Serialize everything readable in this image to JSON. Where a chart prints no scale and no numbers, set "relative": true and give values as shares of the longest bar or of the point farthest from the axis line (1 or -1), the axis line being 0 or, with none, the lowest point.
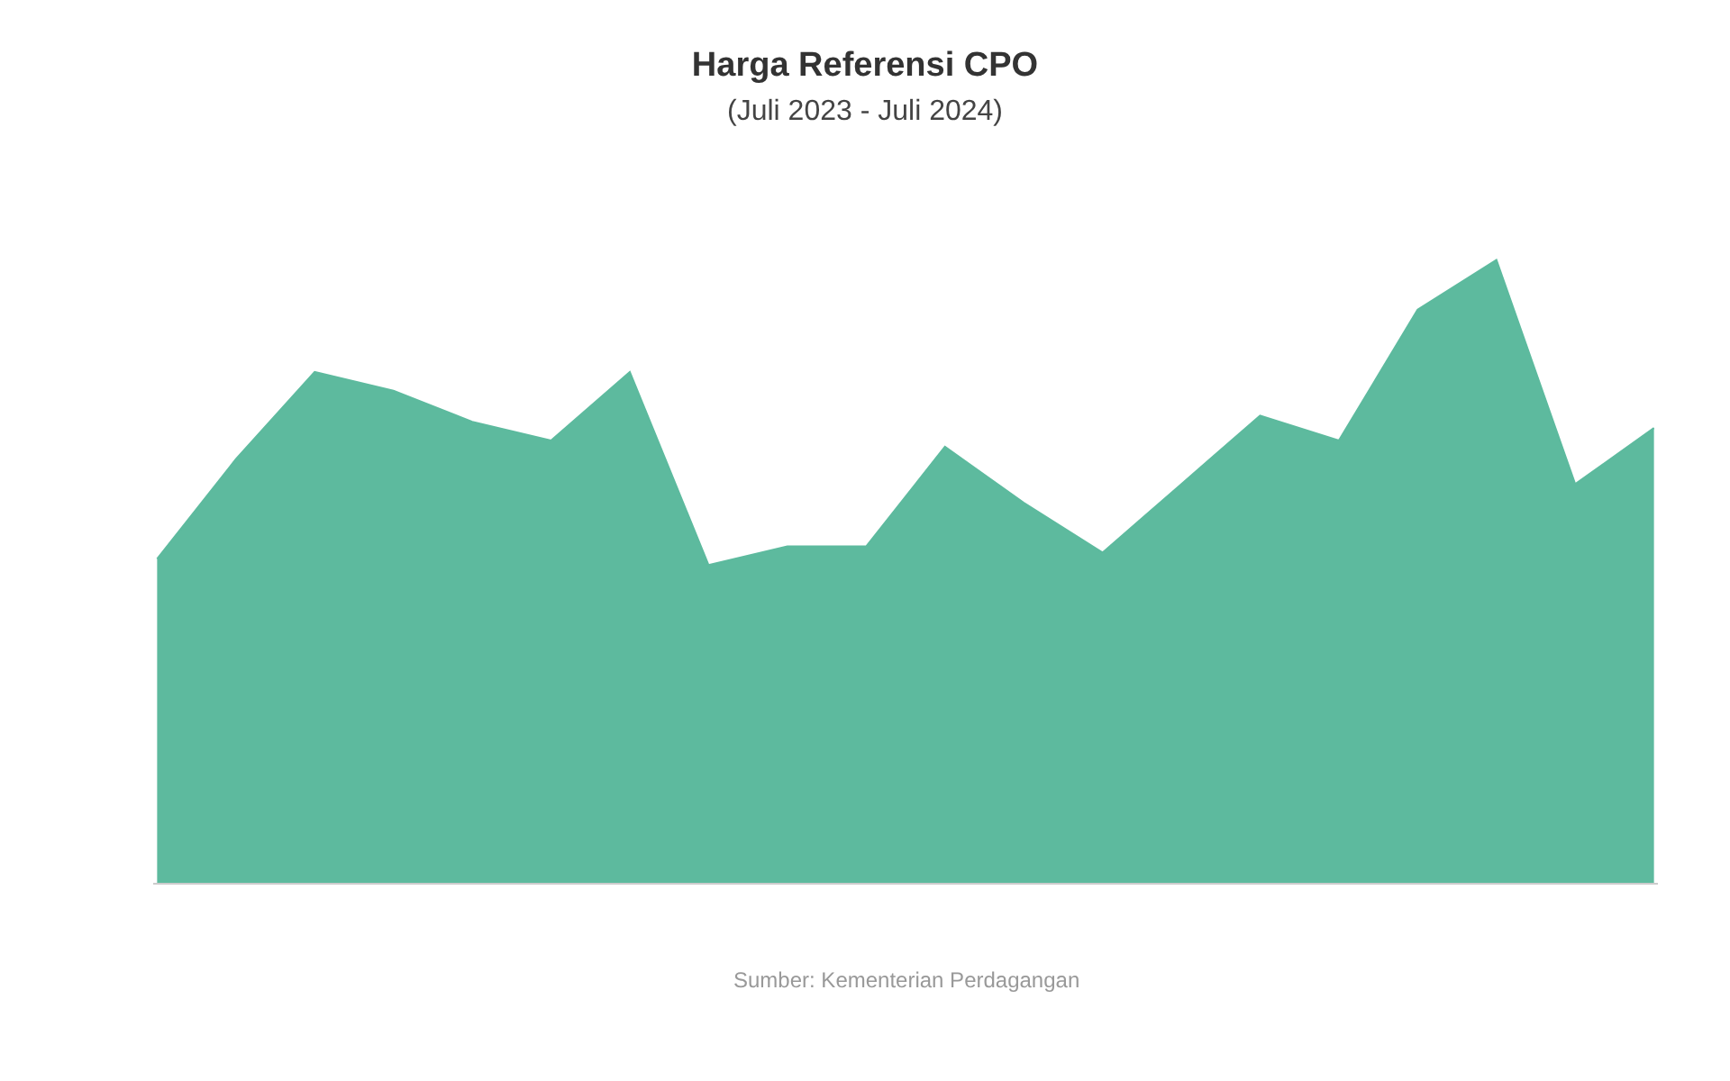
{
  "chart_data": {
    "type": "area",
    "title": "Harga Referensi CPO",
    "subtitle": "(Juli 2023 - Juli 2024)",
    "categories": [
      null,
      null,
      null,
      null,
      null,
      null,
      null,
      null,
      null,
      null,
      null,
      null,
      null,
      null,
      null,
      null,
      null,
      null,
      null,
      null
    ],
    "relative": true,
    "series": [
      {
        "color": "#5dba9e",
        "values": [
          0.52,
          0.68,
          0.82,
          0.79,
          0.74,
          0.71,
          0.82,
          0.51,
          0.54,
          0.54,
          0.7,
          0.61,
          0.53,
          0.64,
          0.75,
          0.71,
          0.92,
          1,
          0.64,
          0.73
        ]
      }
    ],
    "annotations": [
      "Sumber: Kementerian Perdagangan"
    ]
  }
}
